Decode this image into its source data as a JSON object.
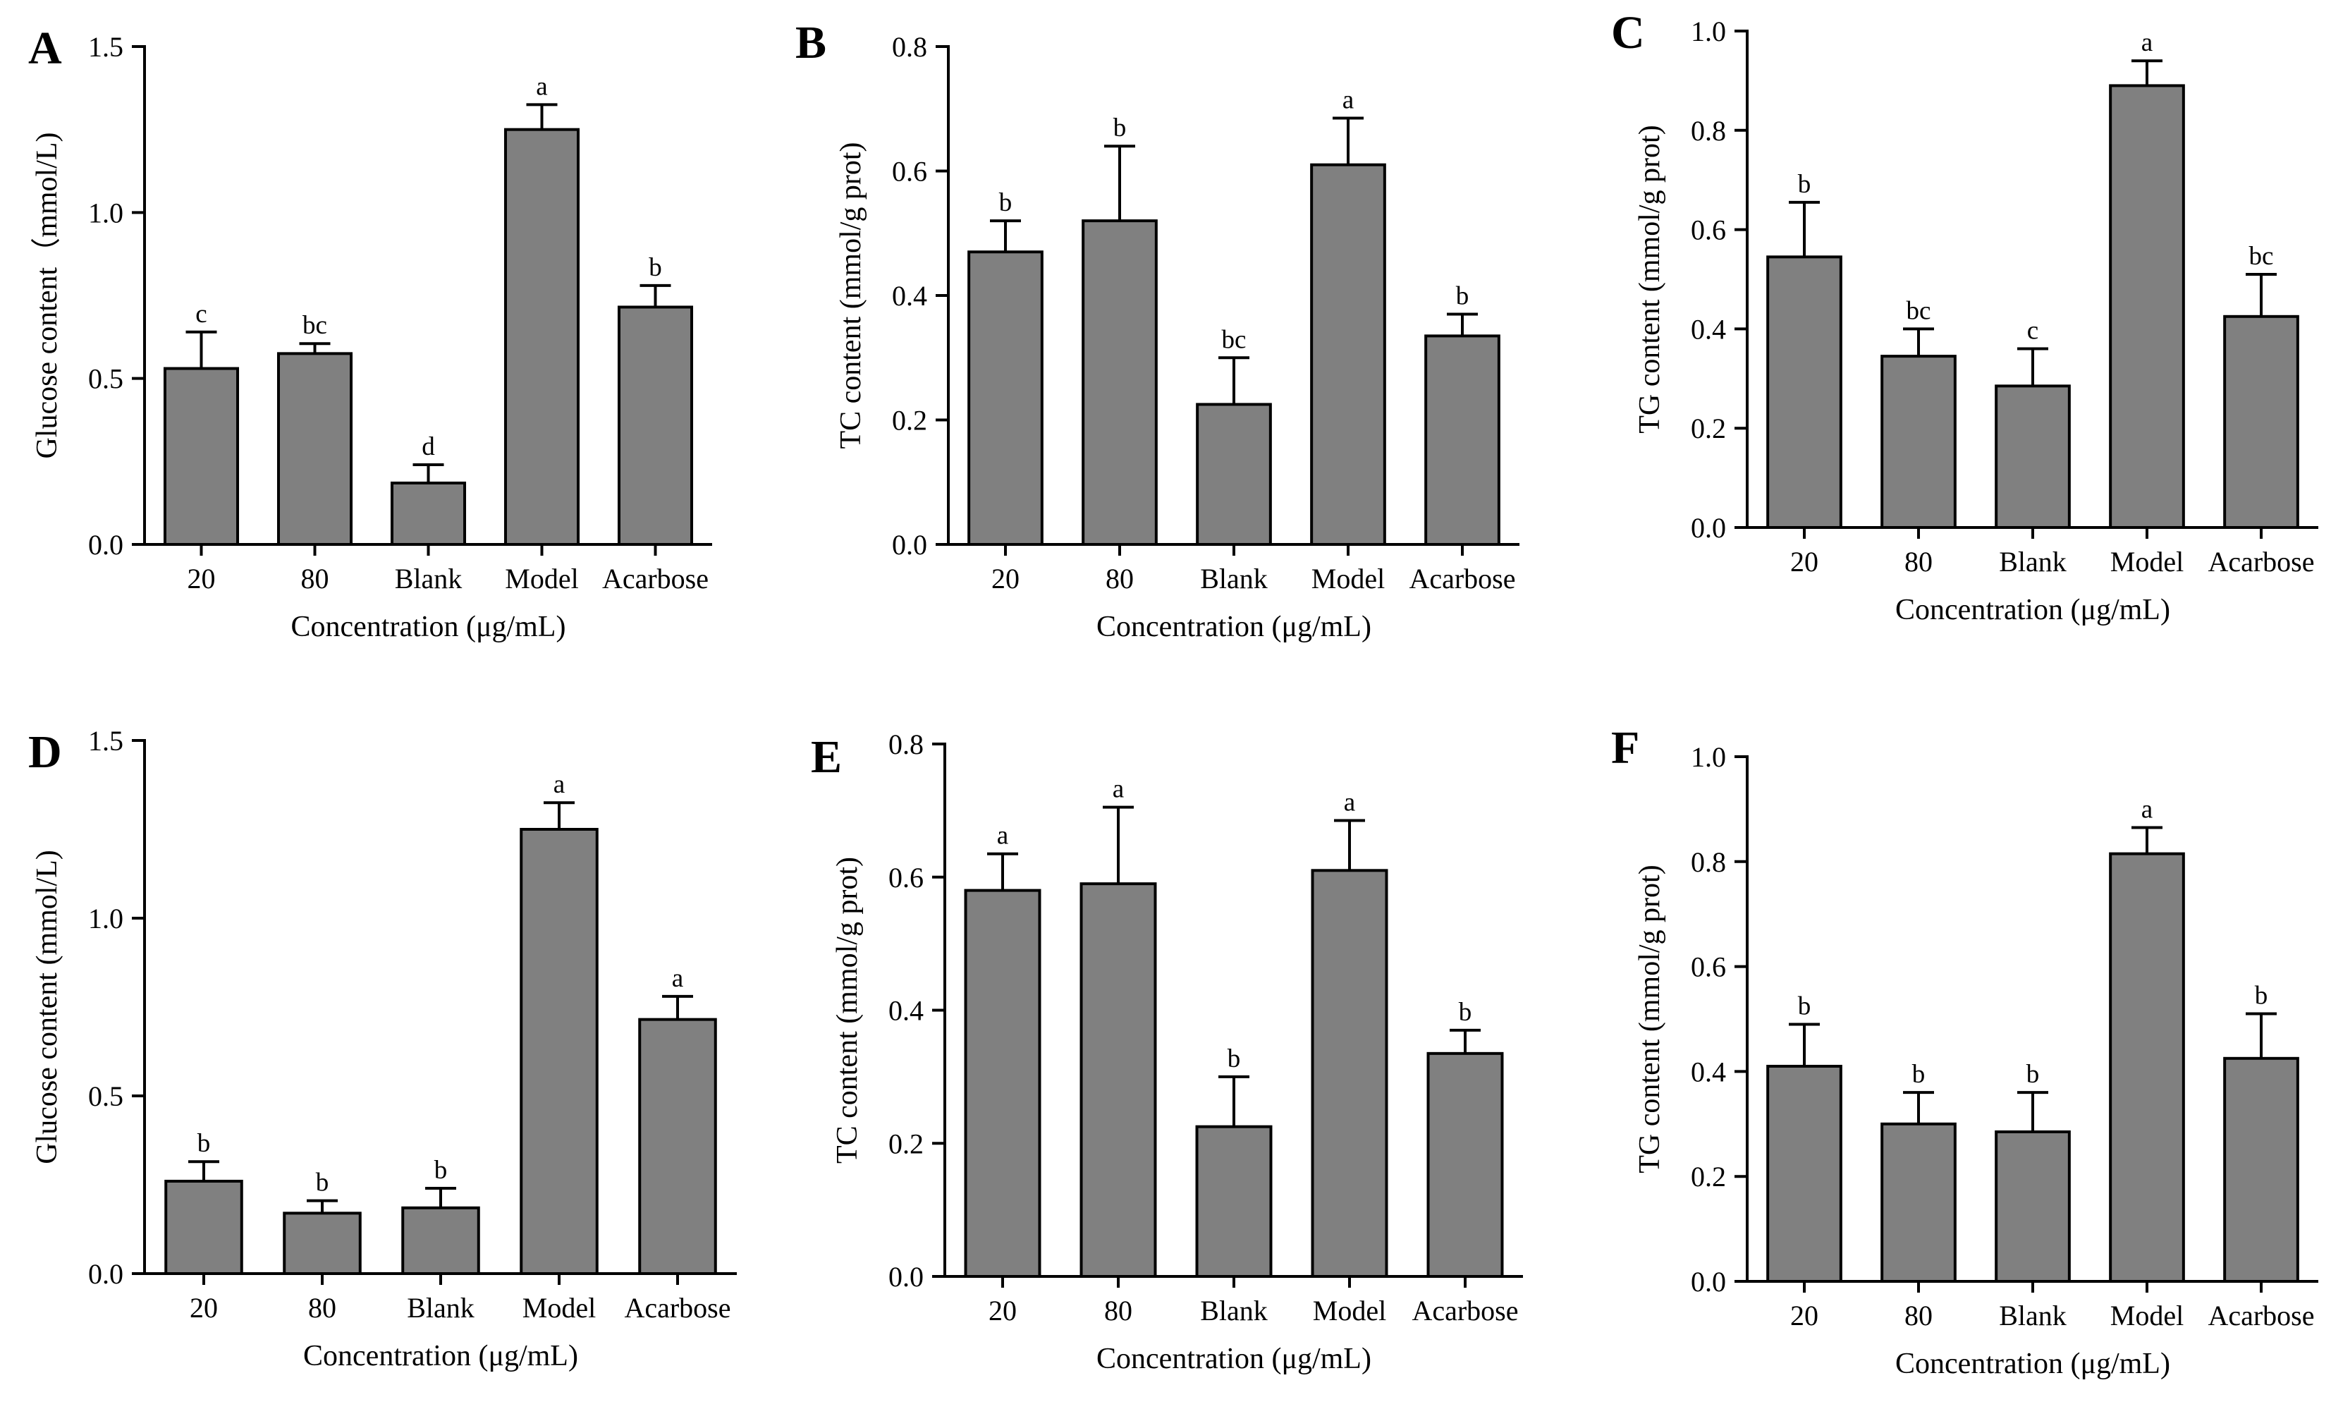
{
  "colors": {
    "bar": "#808080",
    "stroke": "#000000",
    "background": "#ffffff"
  },
  "chart_data": [
    {
      "panel": "A",
      "type": "bar",
      "categories": [
        "20",
        "80",
        "Blank",
        "Model",
        "Acarbose"
      ],
      "values": [
        0.53,
        0.575,
        0.185,
        1.25,
        0.715
      ],
      "errors": [
        0.11,
        0.03,
        0.055,
        0.075,
        0.065
      ],
      "significance": [
        "c",
        "bc",
        "d",
        "a",
        "b"
      ],
      "xlabel": "Concentration (μg/mL)",
      "ylabel": "Glucose content（mmol/L)",
      "ylim": [
        0,
        1.5
      ],
      "yticks": [
        0.0,
        0.5,
        1.0,
        1.5
      ],
      "ytick_labels": [
        "0.0",
        "0.5",
        "1.0",
        "1.5"
      ]
    },
    {
      "panel": "B",
      "type": "bar",
      "categories": [
        "20",
        "80",
        "Blank",
        "Model",
        "Acarbose"
      ],
      "values": [
        0.47,
        0.52,
        0.225,
        0.61,
        0.335
      ],
      "errors": [
        0.05,
        0.12,
        0.075,
        0.075,
        0.035
      ],
      "significance": [
        "b",
        "b",
        "bc",
        "a",
        "b"
      ],
      "xlabel": "Concentration (μg/mL)",
      "ylabel": "TC content (mmol/g prot)",
      "ylim": [
        0,
        0.8
      ],
      "yticks": [
        0.0,
        0.2,
        0.4,
        0.6,
        0.8
      ],
      "ytick_labels": [
        "0.0",
        "0.2",
        "0.4",
        "0.6",
        "0.8"
      ]
    },
    {
      "panel": "C",
      "type": "bar",
      "categories": [
        "20",
        "80",
        "Blank",
        "Model",
        "Acarbose"
      ],
      "values": [
        0.545,
        0.345,
        0.285,
        0.89,
        0.425
      ],
      "errors": [
        0.11,
        0.055,
        0.075,
        0.05,
        0.085
      ],
      "significance": [
        "b",
        "bc",
        "c",
        "a",
        "bc"
      ],
      "xlabel": "Concentration (μg/mL)",
      "ylabel": "TG content (mmol/g prot)",
      "ylim": [
        0,
        1.0
      ],
      "yticks": [
        0.0,
        0.2,
        0.4,
        0.6,
        0.8,
        1.0
      ],
      "ytick_labels": [
        "0.0",
        "0.2",
        "0.4",
        "0.6",
        "0.8",
        "1.0"
      ]
    },
    {
      "panel": "D",
      "type": "bar",
      "categories": [
        "20",
        "80",
        "Blank",
        "Model",
        "Acarbose"
      ],
      "values": [
        0.26,
        0.17,
        0.185,
        1.25,
        0.715
      ],
      "errors": [
        0.055,
        0.035,
        0.055,
        0.075,
        0.065
      ],
      "significance": [
        "b",
        "b",
        "b",
        "a",
        "a"
      ],
      "xlabel": "Concentration (μg/mL)",
      "ylabel": "Glucose content (mmol/L)",
      "ylim": [
        0,
        1.5
      ],
      "yticks": [
        0.0,
        0.5,
        1.0,
        1.5
      ],
      "ytick_labels": [
        "0.0",
        "0.5",
        "1.0",
        "1.5"
      ]
    },
    {
      "panel": "E",
      "type": "bar",
      "categories": [
        "20",
        "80",
        "Blank",
        "Model",
        "Acarbose"
      ],
      "values": [
        0.58,
        0.59,
        0.225,
        0.61,
        0.335
      ],
      "errors": [
        0.055,
        0.115,
        0.075,
        0.075,
        0.035
      ],
      "significance": [
        "a",
        "a",
        "b",
        "a",
        "b"
      ],
      "xlabel": "Concentration (μg/mL)",
      "ylabel": "TC content (mmol/g prot)",
      "ylim": [
        0,
        0.8
      ],
      "yticks": [
        0.0,
        0.2,
        0.4,
        0.6,
        0.8
      ],
      "ytick_labels": [
        "0.0",
        "0.2",
        "0.4",
        "0.6",
        "0.8"
      ]
    },
    {
      "panel": "F",
      "type": "bar",
      "categories": [
        "20",
        "80",
        "Blank",
        "Model",
        "Acarbose"
      ],
      "values": [
        0.41,
        0.3,
        0.285,
        0.815,
        0.425
      ],
      "errors": [
        0.08,
        0.06,
        0.075,
        0.05,
        0.085
      ],
      "significance": [
        "b",
        "b",
        "b",
        "a",
        "b"
      ],
      "xlabel": "Concentration (μg/mL)",
      "ylabel": "TG content (mmol/g prot)",
      "ylim": [
        0,
        1.0
      ],
      "yticks": [
        0.0,
        0.2,
        0.4,
        0.6,
        0.8,
        1.0
      ],
      "ytick_labels": [
        "0.0",
        "0.2",
        "0.4",
        "0.6",
        "0.8",
        "1.0"
      ]
    }
  ]
}
